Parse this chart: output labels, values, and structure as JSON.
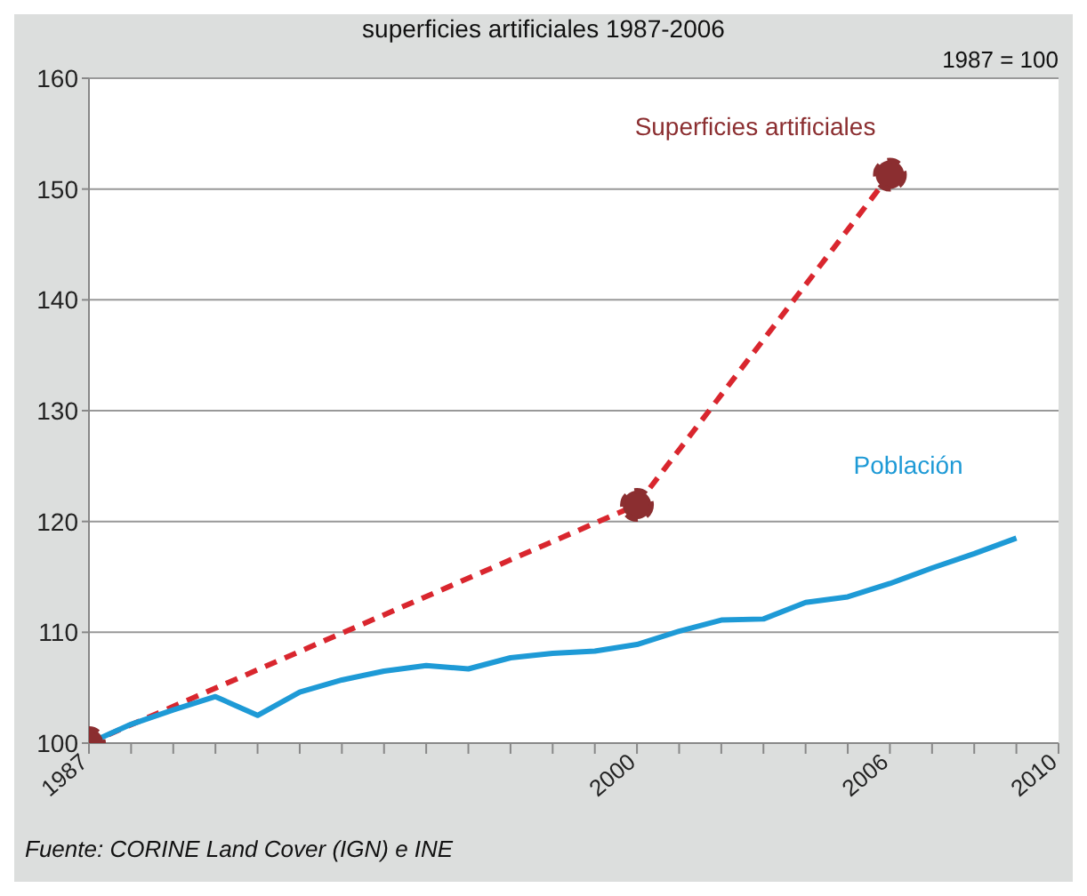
{
  "chart_data": {
    "type": "line",
    "title": "superficies artificiales 1987-2006",
    "annotations": [
      "1987 = 100",
      "Fuente: CORINE Land Cover (IGN) e INE"
    ],
    "xlim": [
      1987,
      2010
    ],
    "xticks": [
      1987,
      {
        "value": 1988,
        "label": null
      },
      {
        "value": 1989,
        "label": null
      },
      {
        "value": 1990,
        "label": null
      },
      {
        "value": 1991,
        "label": null
      },
      {
        "value": 1992,
        "label": null
      },
      {
        "value": 1993,
        "label": null
      },
      {
        "value": 1994,
        "label": null
      },
      {
        "value": 1995,
        "label": null
      },
      {
        "value": 1996,
        "label": null
      },
      {
        "value": 1997,
        "label": null
      },
      {
        "value": 1998,
        "label": null
      },
      {
        "value": 1999,
        "label": null
      },
      2000,
      {
        "value": 2001,
        "label": null
      },
      {
        "value": 2002,
        "label": null
      },
      {
        "value": 2003,
        "label": null
      },
      {
        "value": 2004,
        "label": null
      },
      {
        "value": 2005,
        "label": null
      },
      2006,
      {
        "value": 2007,
        "label": null
      },
      {
        "value": 2008,
        "label": null
      },
      {
        "value": 2009,
        "label": null
      },
      2010
    ],
    "ylim": [
      100,
      160
    ],
    "yticks": [
      100,
      110,
      120,
      130,
      140,
      150,
      160
    ],
    "grid": "y",
    "legend": false,
    "series": [
      {
        "name": "Superficies artificiales",
        "color": "#d9262e",
        "marker": "circle",
        "line_style": "dashed",
        "x": [
          1987,
          2000,
          2006
        ],
        "values": [
          100,
          121.5,
          151.3
        ]
      },
      {
        "name": "Población",
        "color": "#1e9ad6",
        "marker": "none",
        "line_style": "solid",
        "x": [
          1987,
          1988,
          1989,
          1990,
          1991,
          1992,
          1993,
          1994,
          1995,
          1996,
          1997,
          1998,
          1999,
          2000,
          2001,
          2002,
          2003,
          2004,
          2005,
          2006,
          2007,
          2008,
          2009
        ],
        "values": [
          100,
          101.7,
          103,
          104.2,
          102.5,
          104.6,
          105.7,
          106.5,
          107,
          106.7,
          107.7,
          108.1,
          108.3,
          108.9,
          110.1,
          111.1,
          111.2,
          112.7,
          113.2,
          114.4,
          115.8,
          117.1,
          118.5
        ]
      }
    ]
  }
}
